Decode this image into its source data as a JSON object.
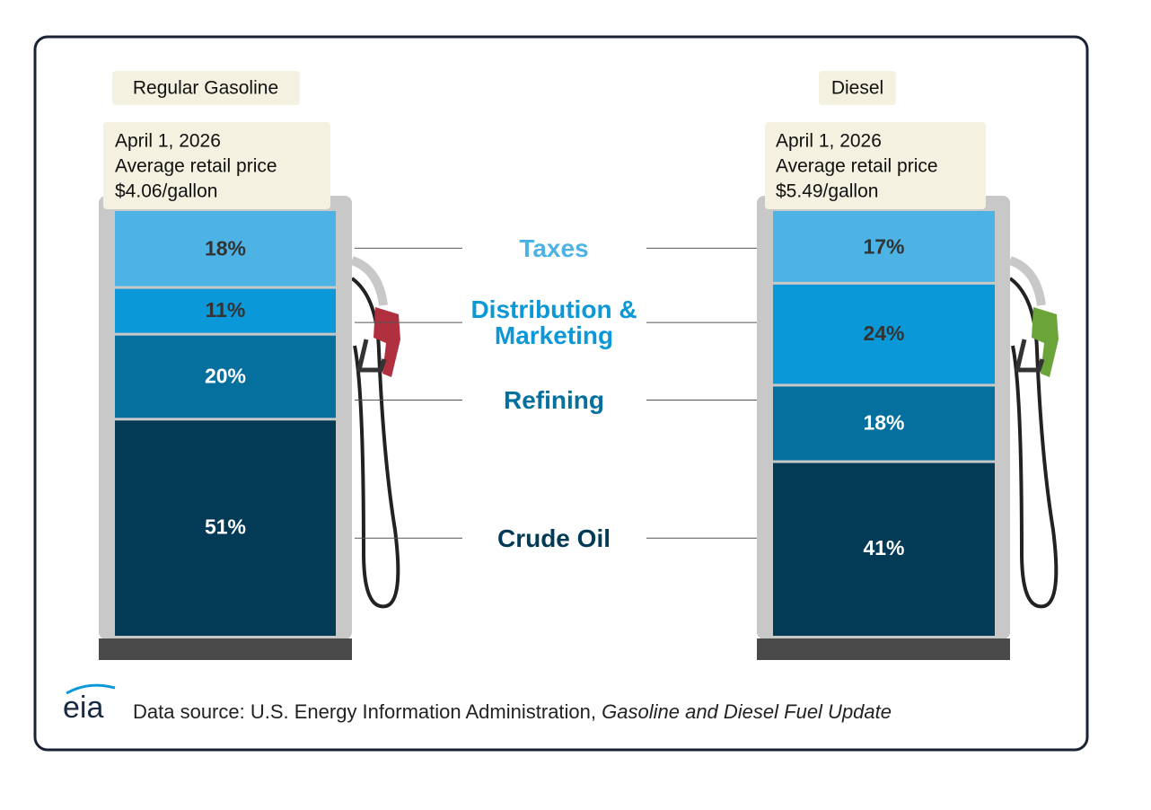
{
  "chart_data": {
    "type": "bar",
    "stacked": true,
    "categories": [
      "Regular Gasoline",
      "Diesel"
    ],
    "date": "April 1, 2026",
    "price_caption": "Average retail price",
    "prices": [
      "$4.06/gallon",
      "$5.49/gallon"
    ],
    "ylim": [
      0,
      100
    ],
    "series": [
      {
        "name": "Crude Oil",
        "color": "#033a56",
        "values": [
          51,
          41
        ],
        "value_labels": [
          "51%",
          "41%"
        ]
      },
      {
        "name": "Refining",
        "color": "#05709e",
        "values": [
          20,
          18
        ],
        "value_labels": [
          "20%",
          "18%"
        ]
      },
      {
        "name": "Distribution & Marketing",
        "color": "#0a98d8",
        "values": [
          11,
          24
        ],
        "value_labels": [
          "11%",
          "24%"
        ]
      },
      {
        "name": "Taxes",
        "color": "#4db3e4",
        "values": [
          18,
          17
        ],
        "value_labels": [
          "18%",
          "17%"
        ]
      }
    ]
  },
  "logo": "eia",
  "source": {
    "text": "Data source: U.S. Energy Information Administration,",
    "title": "Gasoline and Diesel Fuel Update"
  }
}
